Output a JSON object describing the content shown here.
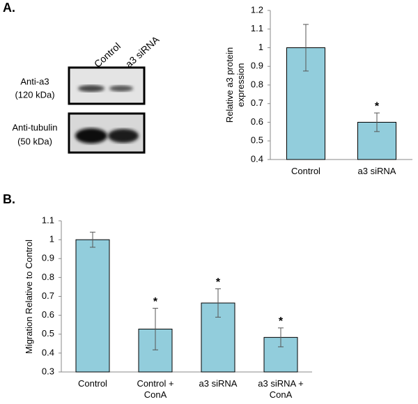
{
  "panel_labels": [
    "A.",
    "B."
  ],
  "blot": {
    "lanes": [
      "Control",
      "a3 siRNA"
    ],
    "rows": [
      {
        "antibody": "Anti-a3",
        "size": "(120 kDa)"
      },
      {
        "antibody": "Anti-tubulin",
        "size": "(50 kDa)"
      }
    ]
  },
  "chart_data": [
    {
      "type": "bar",
      "y_label": "Relative a3 protein expression",
      "categories": [
        "Control",
        "a3 siRNA"
      ],
      "values": [
        1.0,
        0.6
      ],
      "errors": [
        0.125,
        0.05
      ],
      "significance": [
        null,
        "*"
      ],
      "color": "#92cddc",
      "ylim": [
        0.4,
        1.2
      ],
      "yticks": [
        0.4,
        0.5,
        0.6,
        0.7,
        0.8,
        0.9,
        1,
        1.1,
        1.2
      ]
    },
    {
      "type": "bar",
      "y_label": "Migration Relative to Control",
      "categories": [
        "Control",
        "Control + ConA",
        "a3 siRNA",
        "a3 siRNA + ConA"
      ],
      "values": [
        1.0,
        0.527,
        0.665,
        0.483
      ],
      "errors": [
        0.04,
        0.11,
        0.075,
        0.05
      ],
      "significance": [
        null,
        "*",
        "*",
        "*"
      ],
      "color": "#92cddc",
      "ylim": [
        0.3,
        1.1
      ],
      "yticks": [
        0.3,
        0.4,
        0.5,
        0.6,
        0.7,
        0.8,
        0.9,
        1,
        1.1
      ]
    }
  ]
}
